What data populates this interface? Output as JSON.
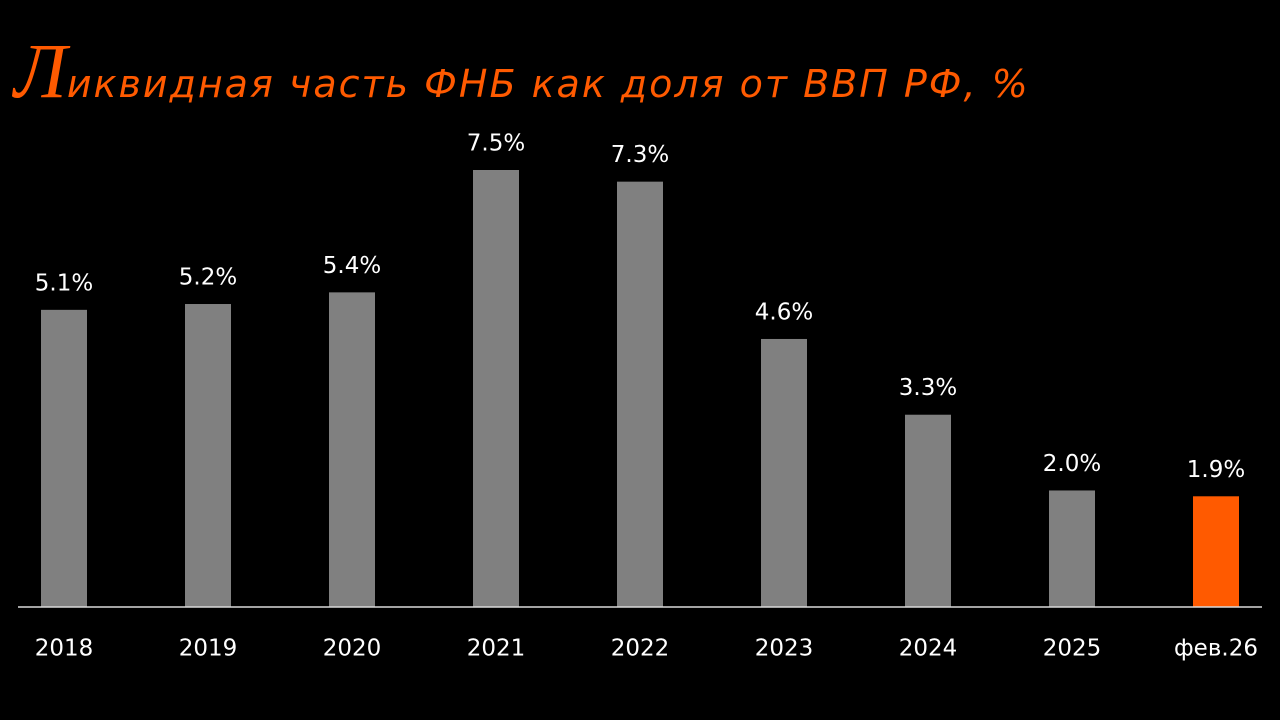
{
  "chart_data": {
    "type": "bar",
    "title": "Ликвидная часть ФНБ как доля от ВВП РФ, %",
    "categories": [
      "2018",
      "2019",
      "2020",
      "2021",
      "2022",
      "2023",
      "2024",
      "2025",
      "фев.26"
    ],
    "values": [
      5.1,
      5.2,
      5.4,
      7.5,
      7.3,
      4.6,
      3.3,
      2.0,
      1.9
    ],
    "value_labels": [
      "5.1%",
      "5.2%",
      "5.4%",
      "7.5%",
      "7.3%",
      "4.6%",
      "3.3%",
      "2.0%",
      "1.9%"
    ],
    "colors": [
      "#808080",
      "#808080",
      "#808080",
      "#808080",
      "#808080",
      "#808080",
      "#808080",
      "#808080",
      "#ff5a00"
    ]
  }
}
